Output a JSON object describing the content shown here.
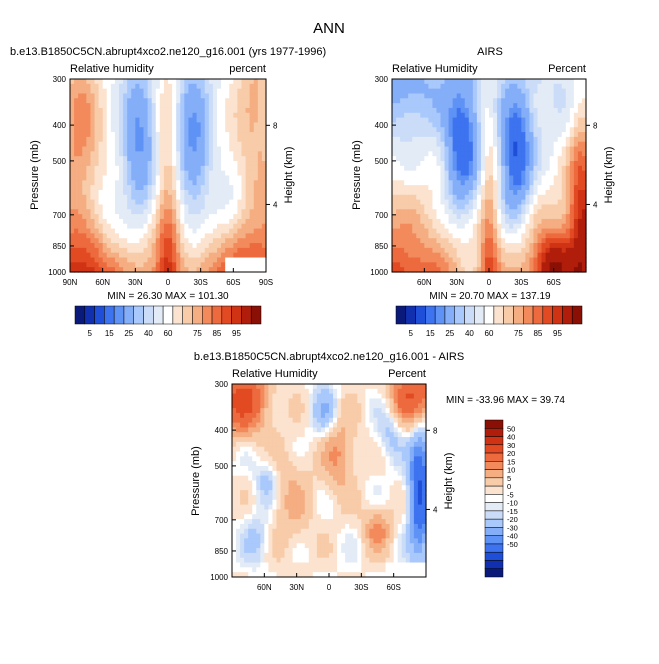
{
  "figure": {
    "title": "ANN"
  },
  "colors": {
    "full_levels": [
      "#0a1a7a",
      "#1030b0",
      "#1f4fd8",
      "#3d73ef",
      "#5f92f5",
      "#85aef8",
      "#a9c8fb",
      "#cadcf8",
      "#e2ebf6",
      "#ffffff",
      "#fbe3cf",
      "#f8cba9",
      "#f5ad82",
      "#f28a5c",
      "#ec6a3e",
      "#e24a23",
      "#cf3314",
      "#b01e0b",
      "#8a0f05"
    ],
    "diff_levels": [
      "#0a1a7a",
      "#1030b0",
      "#1f4fd8",
      "#3d73ef",
      "#5f92f5",
      "#85aef8",
      "#a9c8fb",
      "#cadcf8",
      "#e2ebf6",
      "#ffffff",
      "#fbe3cf",
      "#f8cba9",
      "#f5ad82",
      "#f28a5c",
      "#ec6a3e",
      "#e24a23",
      "#cf3314",
      "#b01e0b",
      "#8a0f05"
    ],
    "missing": "#ffffff"
  },
  "colorbars": {
    "full": {
      "labels": [
        "5",
        "15",
        "25",
        "40",
        "60",
        "75",
        "85",
        "95"
      ]
    },
    "diff": {
      "labels": [
        "50",
        "40",
        "30",
        "20",
        "15",
        "10",
        "5",
        "0",
        "-5",
        "-10",
        "-15",
        "-20",
        "-30",
        "-40",
        "-50"
      ]
    }
  },
  "chart_data": [
    {
      "type": "heatmap",
      "panel_title": "b.e13.B1850C5CN.abrupt4xco2.ne120_g16.001 (yrs 1977-1996)",
      "left_label": "Relative humidity",
      "right_label": "percent",
      "ylabel": "Pressure (mb)",
      "right_axis_label": "Height (km)",
      "x_ticks": [
        "90N",
        "60N",
        "30N",
        "0",
        "30S",
        "60S",
        "90S"
      ],
      "y_ticks": [
        "300",
        "400",
        "500",
        "700",
        "850",
        "1000"
      ],
      "right_ticks": [
        "8",
        "4"
      ],
      "stats": "MIN = 26.30   MAX = 101.30",
      "min": 26.3,
      "max": 101.3,
      "xlim": [
        90,
        -90
      ],
      "ylim": [
        1000,
        300
      ]
    },
    {
      "type": "heatmap",
      "panel_title": "AIRS",
      "left_label": "Relative Humidity",
      "right_label": "Percent",
      "ylabel": "Pressure (mb)",
      "right_axis_label": "Height (km)",
      "x_ticks": [
        "60N",
        "30N",
        "0",
        "30S",
        "60S"
      ],
      "y_ticks": [
        "300",
        "400",
        "500",
        "700",
        "850",
        "1000"
      ],
      "right_ticks": [
        "8",
        "4"
      ],
      "stats": "MIN = 20.70   MAX = 137.19",
      "min": 20.7,
      "max": 137.19,
      "xlim": [
        90,
        -90
      ],
      "ylim": [
        1000,
        300
      ]
    },
    {
      "type": "heatmap",
      "panel_title": "b.e13.B1850C5CN.abrupt4xco2.ne120_g16.001 - AIRS",
      "left_label": "Relative Humidity",
      "right_label": "Percent",
      "ylabel": "Pressure (mb)",
      "right_axis_label": "Height (km)",
      "x_ticks": [
        "60N",
        "30N",
        "0",
        "30S",
        "60S"
      ],
      "y_ticks": [
        "300",
        "400",
        "500",
        "700",
        "850",
        "1000"
      ],
      "right_ticks": [
        "8",
        "4"
      ],
      "stats": "MIN = -33.96   MAX =  39.74",
      "min": -33.96,
      "max": 39.74,
      "xlim": [
        90,
        -90
      ],
      "ylim": [
        1000,
        300
      ]
    }
  ]
}
